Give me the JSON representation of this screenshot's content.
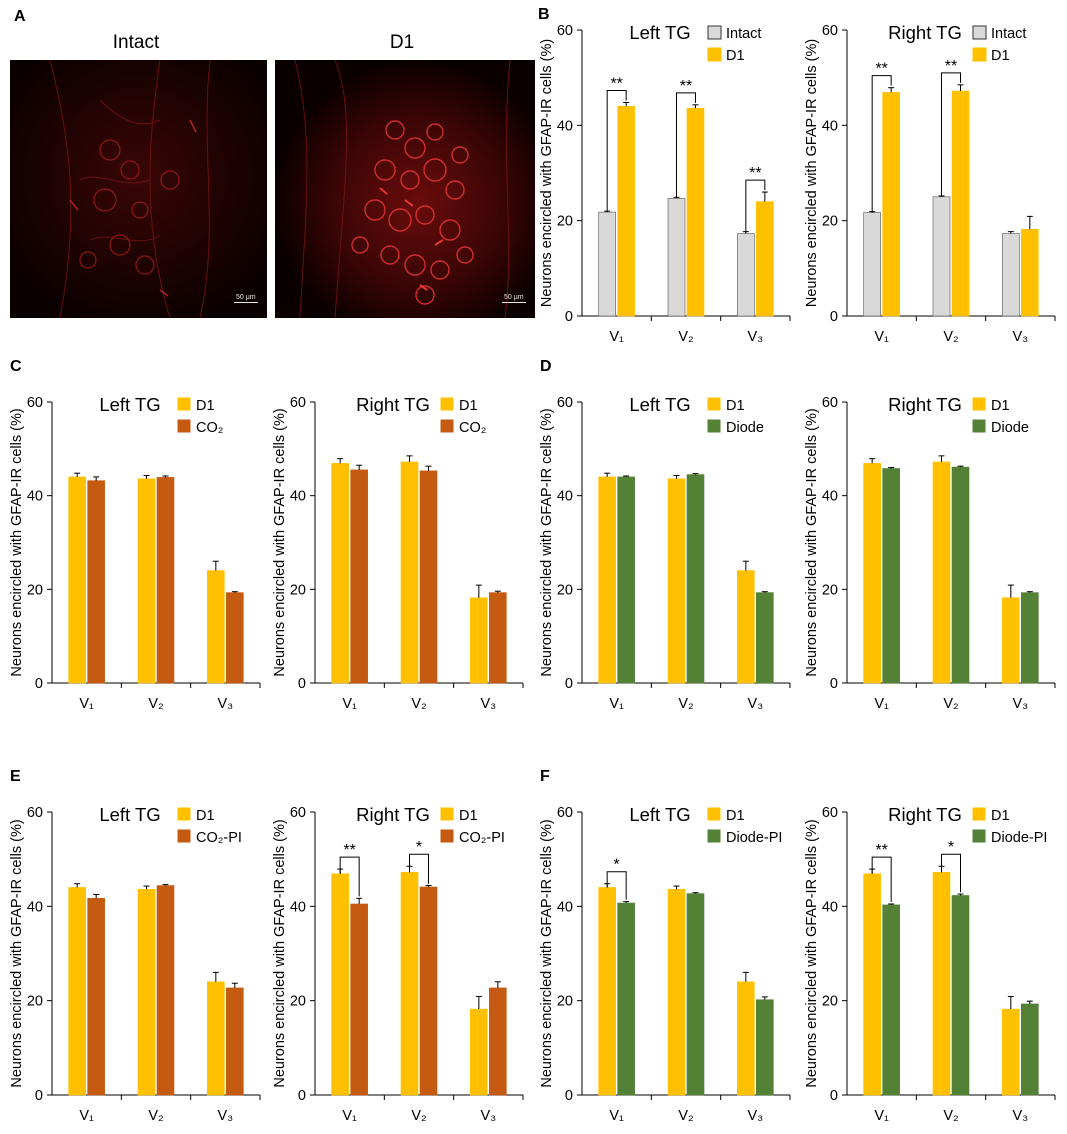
{
  "panels": {
    "A": {
      "letter": "A",
      "images": [
        {
          "title": "Intact",
          "scalebar": "50 μm"
        },
        {
          "title": "D1",
          "scalebar": "50 μm"
        }
      ]
    },
    "B": {
      "letter": "B"
    },
    "C": {
      "letter": "C"
    },
    "D": {
      "letter": "D"
    },
    "E": {
      "letter": "E"
    },
    "F": {
      "letter": "F"
    }
  },
  "colors": {
    "intact": "#d9d9d9",
    "d1": "#ffc000",
    "co2": "#c55a11",
    "diode": "#538135"
  },
  "chart_data": [
    {
      "id": "B-left",
      "panel": "B",
      "type": "bar",
      "title": "Left TG",
      "ylabel": "Neurons encircled with GFAP-IR cells (%)",
      "ylim": [
        0,
        60
      ],
      "yticks": [
        0,
        20,
        40,
        60
      ],
      "categories": [
        "V₁",
        "V₂",
        "V₃"
      ],
      "series": [
        {
          "name": "Intact",
          "color": "#d9d9d9",
          "values": [
            21.8,
            24.7,
            17.3
          ],
          "errors": [
            0.2,
            0.2,
            0.4
          ]
        },
        {
          "name": "D1",
          "color": "#ffc000",
          "values": [
            44.0,
            43.6,
            24.0
          ],
          "errors": [
            0.8,
            0.7,
            2.0
          ]
        }
      ],
      "significance": [
        {
          "category": 0,
          "label": "**"
        },
        {
          "category": 1,
          "label": "**"
        },
        {
          "category": 2,
          "label": "**"
        }
      ],
      "legend_style": "square"
    },
    {
      "id": "B-right",
      "panel": "B",
      "type": "bar",
      "title": "Right TG",
      "ylabel": "Neurons encircled with GFAP-IR cells (%)",
      "ylim": [
        0,
        60
      ],
      "yticks": [
        0,
        20,
        40,
        60
      ],
      "categories": [
        "V₁",
        "V₂",
        "V₃"
      ],
      "series": [
        {
          "name": "Intact",
          "color": "#d9d9d9",
          "values": [
            21.7,
            25.0,
            17.3
          ],
          "errors": [
            0.2,
            0.2,
            0.4
          ]
        },
        {
          "name": "D1",
          "color": "#ffc000",
          "values": [
            46.9,
            47.2,
            18.2
          ],
          "errors": [
            1.0,
            1.3,
            2.7
          ]
        }
      ],
      "significance": [
        {
          "category": 0,
          "label": "**"
        },
        {
          "category": 1,
          "label": "**"
        }
      ],
      "legend_style": "square"
    },
    {
      "id": "C-left",
      "panel": "C",
      "type": "bar",
      "title": "Left TG",
      "ylabel": "Neurons encircled with GFAP-IR cells (%)",
      "ylim": [
        0,
        60
      ],
      "yticks": [
        0,
        20,
        40,
        60
      ],
      "categories": [
        "V₁",
        "V₂",
        "V₃"
      ],
      "series": [
        {
          "name": "D1",
          "color": "#ffc000",
          "values": [
            44.0,
            43.6,
            24.0
          ],
          "errors": [
            0.8,
            0.7,
            2.0
          ]
        },
        {
          "name": "CO₂",
          "color": "#c55a11",
          "values": [
            43.2,
            43.9,
            19.3
          ],
          "errors": [
            0.8,
            0.3,
            0.2
          ]
        }
      ],
      "significance": []
    },
    {
      "id": "C-right",
      "panel": "C",
      "type": "bar",
      "title": "Right TG",
      "ylabel": "Neurons encircled with GFAP-IR cells (%)",
      "ylim": [
        0,
        60
      ],
      "yticks": [
        0,
        20,
        40,
        60
      ],
      "categories": [
        "V₁",
        "V₂",
        "V₃"
      ],
      "series": [
        {
          "name": "D1",
          "color": "#ffc000",
          "values": [
            46.9,
            47.2,
            18.2
          ],
          "errors": [
            1.0,
            1.3,
            2.7
          ]
        },
        {
          "name": "CO₂",
          "color": "#c55a11",
          "values": [
            45.5,
            45.3,
            19.3
          ],
          "errors": [
            1.0,
            1.0,
            0.3
          ]
        }
      ],
      "significance": []
    },
    {
      "id": "D-left",
      "panel": "D",
      "type": "bar",
      "title": "Left TG",
      "ylabel": "Neurons encircled with GFAP-IR cells (%)",
      "ylim": [
        0,
        60
      ],
      "yticks": [
        0,
        20,
        40,
        60
      ],
      "categories": [
        "V₁",
        "V₂",
        "V₃"
      ],
      "series": [
        {
          "name": "D1",
          "color": "#ffc000",
          "values": [
            44.0,
            43.6,
            24.0
          ],
          "errors": [
            0.8,
            0.7,
            2.0
          ]
        },
        {
          "name": "Diode",
          "color": "#538135",
          "values": [
            44.0,
            44.5,
            19.3
          ],
          "errors": [
            0.2,
            0.2,
            0.2
          ]
        }
      ],
      "significance": []
    },
    {
      "id": "D-right",
      "panel": "D",
      "type": "bar",
      "title": "Right TG",
      "ylabel": "Neurons encircled with GFAP-IR cells (%)",
      "ylim": [
        0,
        60
      ],
      "yticks": [
        0,
        20,
        40,
        60
      ],
      "categories": [
        "V₁",
        "V₂",
        "V₃"
      ],
      "series": [
        {
          "name": "D1",
          "color": "#ffc000",
          "values": [
            46.9,
            47.2,
            18.2
          ],
          "errors": [
            1.0,
            1.3,
            2.7
          ]
        },
        {
          "name": "Diode",
          "color": "#538135",
          "values": [
            45.8,
            46.1,
            19.3
          ],
          "errors": [
            0.2,
            0.2,
            0.2
          ]
        }
      ],
      "significance": []
    },
    {
      "id": "E-left",
      "panel": "E",
      "type": "bar",
      "title": "Left TG",
      "ylabel": "Neurons encircled with GFAP-IR cells (%)",
      "ylim": [
        0,
        60
      ],
      "yticks": [
        0,
        20,
        40,
        60
      ],
      "categories": [
        "V₁",
        "V₂",
        "V₃"
      ],
      "series": [
        {
          "name": "D1",
          "color": "#ffc000",
          "values": [
            44.0,
            43.6,
            24.0
          ],
          "errors": [
            0.8,
            0.7,
            2.0
          ]
        },
        {
          "name": "CO₂-PI",
          "color": "#c55a11",
          "values": [
            41.7,
            44.4,
            22.7
          ],
          "errors": [
            0.8,
            0.2,
            1.0
          ]
        }
      ],
      "significance": []
    },
    {
      "id": "E-right",
      "panel": "E",
      "type": "bar",
      "title": "Right TG",
      "ylabel": "Neurons encircled with GFAP-IR cells (%)",
      "ylim": [
        0,
        60
      ],
      "yticks": [
        0,
        20,
        40,
        60
      ],
      "categories": [
        "V₁",
        "V₂",
        "V₃"
      ],
      "series": [
        {
          "name": "D1",
          "color": "#ffc000",
          "values": [
            46.9,
            47.2,
            18.2
          ],
          "errors": [
            1.0,
            1.3,
            2.7
          ]
        },
        {
          "name": "CO₂-PI",
          "color": "#c55a11",
          "values": [
            40.5,
            44.1,
            22.7
          ],
          "errors": [
            1.2,
            0.3,
            1.3
          ]
        }
      ],
      "significance": [
        {
          "category": 0,
          "label": "**"
        },
        {
          "category": 1,
          "label": "*"
        }
      ]
    },
    {
      "id": "F-left",
      "panel": "F",
      "type": "bar",
      "title": "Left TG",
      "ylabel": "Neurons encircled with GFAP-IR cells (%)",
      "ylim": [
        0,
        60
      ],
      "yticks": [
        0,
        20,
        40,
        60
      ],
      "categories": [
        "V₁",
        "V₂",
        "V₃"
      ],
      "series": [
        {
          "name": "D1",
          "color": "#ffc000",
          "values": [
            44.0,
            43.6,
            24.0
          ],
          "errors": [
            0.8,
            0.7,
            2.0
          ]
        },
        {
          "name": "Diode-PI",
          "color": "#538135",
          "values": [
            40.7,
            42.7,
            20.2
          ],
          "errors": [
            0.3,
            0.2,
            0.6
          ]
        }
      ],
      "significance": [
        {
          "category": 0,
          "label": "*"
        }
      ]
    },
    {
      "id": "F-right",
      "panel": "F",
      "type": "bar",
      "title": "Right TG",
      "ylabel": "Neurons encircled with GFAP-IR cells (%)",
      "ylim": [
        0,
        60
      ],
      "yticks": [
        0,
        20,
        40,
        60
      ],
      "categories": [
        "V₁",
        "V₂",
        "V₃"
      ],
      "series": [
        {
          "name": "D1",
          "color": "#ffc000",
          "values": [
            46.9,
            47.2,
            18.2
          ],
          "errors": [
            1.0,
            1.3,
            2.7
          ]
        },
        {
          "name": "Diode-PI",
          "color": "#538135",
          "values": [
            40.3,
            42.3,
            19.3
          ],
          "errors": [
            0.2,
            0.3,
            0.6
          ]
        }
      ],
      "significance": [
        {
          "category": 0,
          "label": "**"
        },
        {
          "category": 1,
          "label": "*"
        }
      ]
    }
  ]
}
